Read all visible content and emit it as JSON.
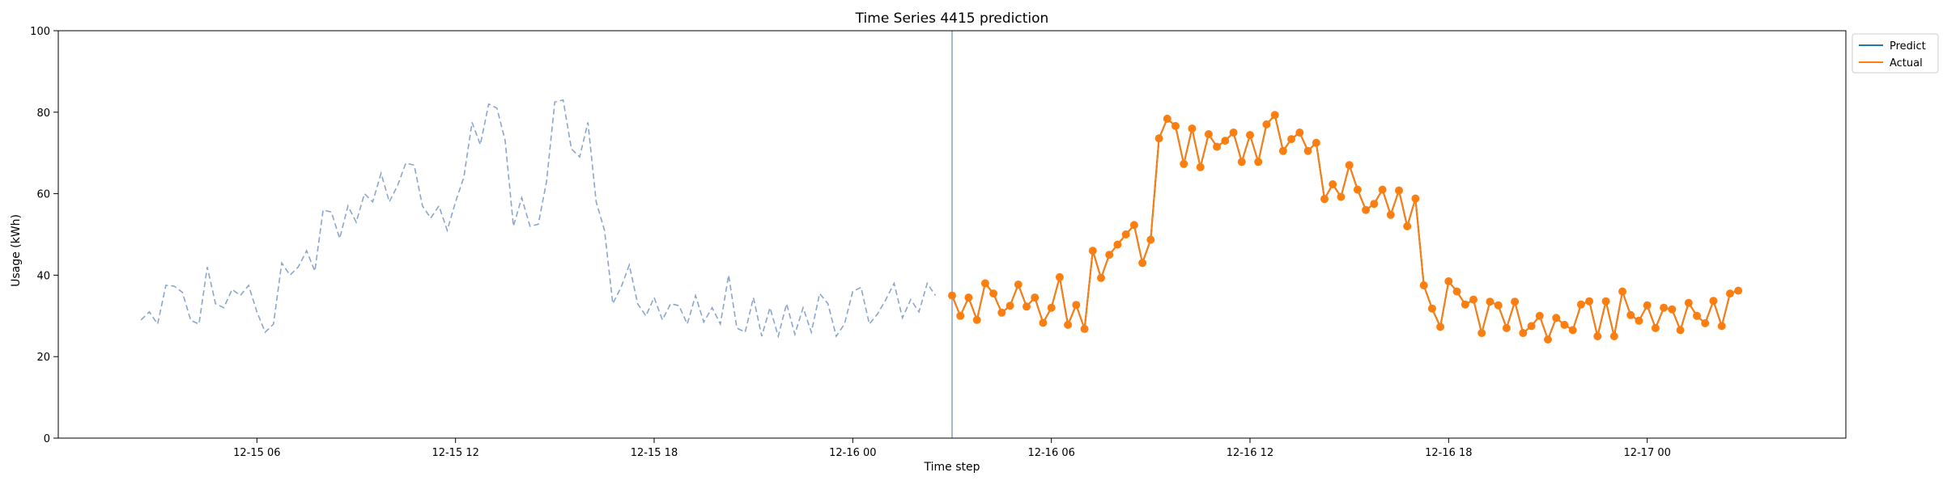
{
  "chart_data": {
    "type": "line",
    "title": "Time Series 4415 prediction",
    "xlabel": "Time step",
    "ylabel": "Usage (kWh)",
    "ylim": [
      0,
      100
    ],
    "yticks": [
      0,
      20,
      40,
      60,
      80,
      100
    ],
    "xlim": [
      "2024-12-15 00:00",
      "2024-12-17 06:00"
    ],
    "xticks": [
      {
        "x": "2024-12-15 06:00",
        "label": "12-15 06"
      },
      {
        "x": "2024-12-15 12:00",
        "label": "12-15 12"
      },
      {
        "x": "2024-12-15 18:00",
        "label": "12-15 18"
      },
      {
        "x": "2024-12-16 00:00",
        "label": "12-16 00"
      },
      {
        "x": "2024-12-16 06:00",
        "label": "12-16 06"
      },
      {
        "x": "2024-12-16 12:00",
        "label": "12-16 12"
      },
      {
        "x": "2024-12-16 18:00",
        "label": "12-16 18"
      },
      {
        "x": "2024-12-17 00:00",
        "label": "12-17 00"
      }
    ],
    "grid": false,
    "legend_position": "upper-right-outside",
    "vertical_line_at": "2024-12-16 03:00",
    "legend": [
      {
        "name": "Predict",
        "color": "#1f77b4"
      },
      {
        "name": "Actual",
        "color": "#ff7f0e"
      }
    ],
    "history": {
      "color": "#8aa6cc",
      "style": "dashed",
      "interval_minutes": 15,
      "start": "2024-12-15 02:30",
      "values": [
        29.0,
        31.0,
        28.0,
        37.5,
        37.3,
        35.8,
        28.9,
        28.0,
        42.0,
        33.0,
        32.0,
        36.5,
        35.0,
        37.5,
        31.0,
        26.0,
        28.0,
        43.0,
        40.0,
        42.0,
        46.0,
        41.0,
        56.0,
        55.5,
        49.0,
        57.0,
        53.0,
        60.0,
        58.0,
        65.0,
        58.0,
        62.0,
        67.5,
        67.0,
        57.0,
        54.0,
        57.0,
        51.0,
        58.0,
        64.0,
        77.5,
        72.0,
        82.0,
        81.0,
        73.0,
        52.0,
        59.0,
        52.0,
        52.5,
        63.0,
        82.5,
        83.0,
        71.0,
        69.0,
        77.5,
        58.0,
        51.0,
        33.0,
        37.0,
        42.5,
        33.0,
        30.0,
        34.5,
        29.0,
        33.0,
        32.5,
        28.0,
        35.0,
        28.5,
        32.0,
        28.0,
        40.0,
        27.0,
        26.0,
        34.5,
        25.0,
        32.0,
        25.0,
        33.0,
        25.5,
        32.0,
        26.0,
        35.5,
        33.0,
        25.0,
        28.0,
        36.0,
        37.0,
        28.0,
        30.5,
        34.0,
        38.0,
        29.5,
        34.0,
        31.0,
        38.0,
        35.0
      ]
    },
    "series": [
      {
        "name": "Actual",
        "color": "#ff7f0e",
        "interval_minutes": 15,
        "start": "2024-12-16 03:00",
        "markers": true,
        "values": [
          35.0,
          30.0,
          34.5,
          29.0,
          38.0,
          35.5,
          30.8,
          32.5,
          37.7,
          32.3,
          34.5,
          28.3,
          32.0,
          39.5,
          27.8,
          32.7,
          26.8,
          46.0,
          39.3,
          45.0,
          47.5,
          50.0,
          52.3,
          43.0,
          48.7,
          73.6,
          78.4,
          76.6,
          67.3,
          76.0,
          66.5,
          74.6,
          71.5,
          73.0,
          75.0,
          67.8,
          74.4,
          67.8,
          77.0,
          79.3,
          70.5,
          73.4,
          75.0,
          70.5,
          72.5,
          58.7,
          62.3,
          59.2,
          67.0,
          61.0,
          56.0,
          57.5,
          61.0,
          54.8,
          60.8,
          52.0,
          58.8,
          37.5,
          31.8,
          27.3,
          38.5,
          36.0,
          32.8,
          34.0,
          25.8,
          33.5,
          32.6,
          27.0,
          33.5,
          25.8,
          27.5,
          30.0,
          24.2,
          29.5,
          27.8,
          26.5,
          32.8,
          33.6,
          25.0,
          33.6,
          25.0,
          36.0,
          30.2,
          28.8,
          32.6,
          27.0,
          32.0,
          31.6,
          26.5,
          33.2,
          30.0,
          28.2,
          33.7,
          27.5,
          35.5,
          36.2
        ]
      },
      {
        "name": "Predict",
        "color": "#1f77b4",
        "interval_minutes": 15,
        "start": "2024-12-16 03:00",
        "markers": false,
        "values": [
          35.0,
          30.0,
          34.5,
          29.0,
          38.0,
          35.5,
          30.8,
          32.5,
          37.7,
          32.3,
          34.5,
          28.3,
          32.0,
          39.5,
          27.8,
          32.7,
          26.8,
          46.0,
          39.3,
          45.0,
          47.5,
          50.0,
          52.3,
          43.0,
          48.7,
          73.6,
          78.4,
          76.6,
          67.3,
          76.0,
          66.5,
          74.6,
          71.5,
          73.0,
          75.0,
          67.8,
          74.4,
          67.8,
          77.0,
          79.3,
          70.5,
          73.4,
          75.0,
          70.5,
          72.5,
          58.7,
          62.3,
          59.2,
          67.0,
          61.0,
          56.0,
          57.5,
          61.0,
          54.8,
          60.8,
          52.0,
          58.8,
          37.5,
          31.8,
          27.3,
          38.5,
          36.0,
          32.8,
          34.0,
          25.8,
          33.5,
          32.6,
          27.0,
          33.5,
          25.8,
          27.5,
          30.0,
          24.2,
          29.5,
          27.8,
          26.5,
          32.8,
          33.6,
          25.0,
          33.6,
          25.0,
          36.0,
          30.2,
          28.8,
          32.6,
          27.0,
          32.0,
          31.6,
          26.5,
          33.2,
          30.0,
          28.2,
          33.7,
          27.5,
          35.5,
          36.2
        ]
      }
    ]
  }
}
